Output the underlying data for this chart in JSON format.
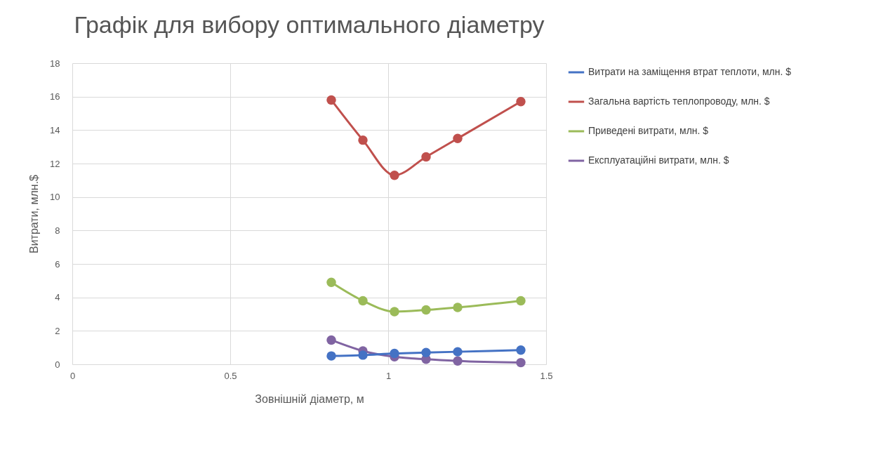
{
  "chart_data": {
    "type": "line",
    "title": "Графік для вибору оптимального діаметру",
    "xlabel": "Зовнішній діаметр, м",
    "ylabel": "Витрати, млн.$",
    "x": [
      0.82,
      0.92,
      1.02,
      1.12,
      1.22,
      1.42
    ],
    "series": [
      {
        "name": "Витрати на заміщення втрат теплоти, млн. $",
        "color": "#4472c4",
        "values": [
          0.5,
          0.55,
          0.65,
          0.7,
          0.75,
          0.85
        ]
      },
      {
        "name": "Загальна вартість теплопроводу, млн. $",
        "color": "#c0504d",
        "values": [
          15.8,
          13.4,
          11.3,
          12.4,
          13.5,
          15.7
        ]
      },
      {
        "name": "Приведені витрати, млн. $",
        "color": "#9bbb59",
        "values": [
          4.9,
          3.8,
          3.15,
          3.25,
          3.4,
          3.8
        ]
      },
      {
        "name": "Експлуатаційні витрати, млн. $",
        "color": "#8064a2",
        "values": [
          1.45,
          0.8,
          0.45,
          0.3,
          0.2,
          0.1
        ]
      }
    ],
    "xlim": [
      0,
      1.5
    ],
    "xticks": [
      0,
      0.5,
      1,
      1.5
    ],
    "ylim": [
      0,
      18
    ],
    "yticks": [
      0,
      2,
      4,
      6,
      8,
      10,
      12,
      14,
      16,
      18
    ],
    "grid": true,
    "legend": "right",
    "marker": "circle",
    "line_style": "solid"
  }
}
